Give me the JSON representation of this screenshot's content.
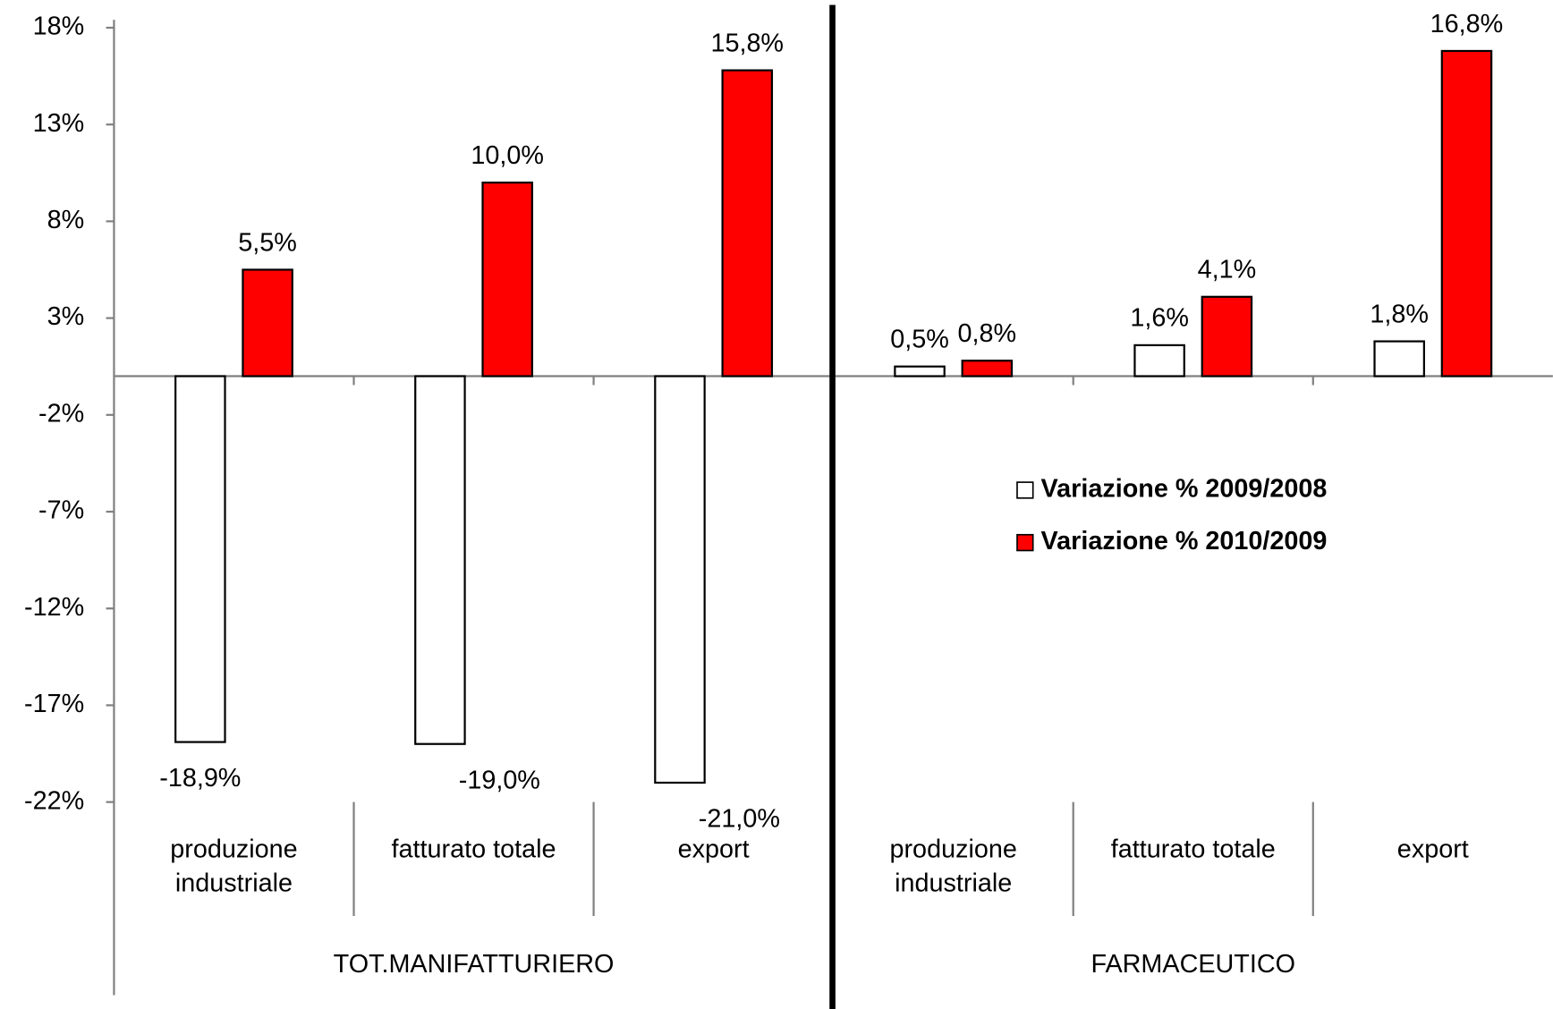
{
  "chart_data": {
    "type": "bar",
    "categories": [
      "produzione industriale",
      "fatturato totale",
      "export",
      "produzione industriale",
      "fatturato totale",
      "export"
    ],
    "groups": [
      {
        "label": "TOT.MANIFATTURIERO",
        "size": 3
      },
      {
        "label": "FARMACEUTICO",
        "size": 3
      }
    ],
    "series": [
      {
        "name": "Variazione % 2009/2008",
        "color": "#ffffff",
        "values": [
          -18.9,
          -19.0,
          -21.0,
          0.5,
          1.6,
          1.8
        ],
        "value_labels": [
          "-18,9%",
          "-19,0%",
          "-21,0%",
          "0,5%",
          "1,6%",
          "1,8%"
        ]
      },
      {
        "name": "Variazione % 2010/2009",
        "color": "#ff0000",
        "values": [
          5.5,
          10.0,
          15.8,
          0.8,
          4.1,
          16.8
        ],
        "value_labels": [
          "5,5%",
          "10,0%",
          "15,8%",
          "0,8%",
          "4,1%",
          "16,8%"
        ]
      }
    ],
    "ylim": [
      -22,
      18
    ],
    "yticks": [
      {
        "value": 18,
        "label": "18%"
      },
      {
        "value": 13,
        "label": "13%"
      },
      {
        "value": 8,
        "label": "8%"
      },
      {
        "value": 3,
        "label": "3%"
      },
      {
        "value": -2,
        "label": "-2%"
      },
      {
        "value": -7,
        "label": "-7%"
      },
      {
        "value": -12,
        "label": "-12%"
      },
      {
        "value": -17,
        "label": "-17%"
      },
      {
        "value": -22,
        "label": "-22%"
      }
    ],
    "grid": false,
    "legend": "right"
  }
}
